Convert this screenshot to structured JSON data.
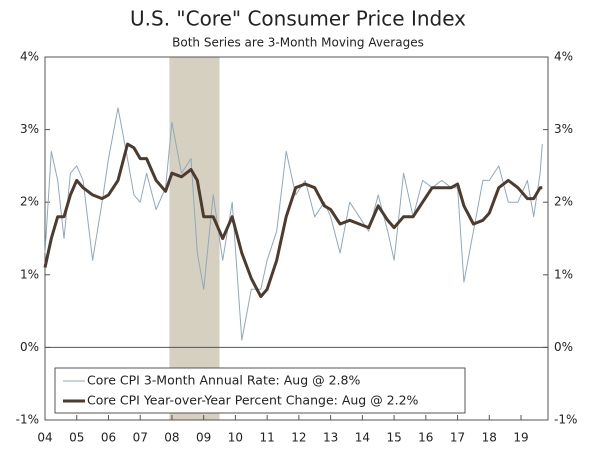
{
  "chart_data": {
    "type": "line",
    "title": "U.S. \"Core\" Consumer Price Index",
    "subtitle": "Both Series are 3-Month Moving Averages",
    "x": [
      2004.0,
      2004.2,
      2004.4,
      2004.6,
      2004.8,
      2005.0,
      2005.2,
      2005.5,
      2005.8,
      2006.0,
      2006.3,
      2006.6,
      2006.8,
      2007.0,
      2007.2,
      2007.5,
      2007.8,
      2008.0,
      2008.3,
      2008.6,
      2008.8,
      2009.0,
      2009.3,
      2009.6,
      2009.9,
      2010.2,
      2010.5,
      2010.8,
      2011.0,
      2011.3,
      2011.6,
      2011.9,
      2012.2,
      2012.5,
      2012.8,
      2013.0,
      2013.3,
      2013.6,
      2013.9,
      2014.2,
      2014.5,
      2014.8,
      2015.0,
      2015.3,
      2015.6,
      2015.9,
      2016.2,
      2016.5,
      2016.8,
      2017.0,
      2017.2,
      2017.5,
      2017.8,
      2018.0,
      2018.3,
      2018.6,
      2018.9,
      2019.2,
      2019.4,
      2019.6,
      2019.67
    ],
    "series": [
      {
        "name": "Core CPI 3-Month Annual Rate: Aug @ 2.8%",
        "color": "#8fa8c0",
        "width": 1,
        "values": [
          1.3,
          2.7,
          2.3,
          1.5,
          2.4,
          2.5,
          2.3,
          1.2,
          2.0,
          2.6,
          3.3,
          2.6,
          2.1,
          2.0,
          2.4,
          1.9,
          2.2,
          3.1,
          2.4,
          2.6,
          1.3,
          0.8,
          2.1,
          1.2,
          2.0,
          0.1,
          0.8,
          0.8,
          1.2,
          1.6,
          2.7,
          2.1,
          2.3,
          1.8,
          2.0,
          1.8,
          1.3,
          2.0,
          1.8,
          1.6,
          2.1,
          1.6,
          1.2,
          2.4,
          1.8,
          2.3,
          2.2,
          2.3,
          2.2,
          2.2,
          0.9,
          1.6,
          2.3,
          2.3,
          2.5,
          2.0,
          2.0,
          2.3,
          1.8,
          2.4,
          2.8
        ]
      },
      {
        "name": "Core CPI Year-over-Year Percent Change: Aug @ 2.2%",
        "color": "#4d3b2e",
        "width": 3,
        "values": [
          1.1,
          1.5,
          1.8,
          1.8,
          2.1,
          2.3,
          2.2,
          2.1,
          2.05,
          2.1,
          2.3,
          2.8,
          2.75,
          2.6,
          2.6,
          2.3,
          2.15,
          2.4,
          2.35,
          2.45,
          2.3,
          1.8,
          1.8,
          1.5,
          1.8,
          1.3,
          0.95,
          0.7,
          0.8,
          1.2,
          1.8,
          2.2,
          2.25,
          2.2,
          1.95,
          1.9,
          1.7,
          1.75,
          1.7,
          1.65,
          1.95,
          1.75,
          1.65,
          1.8,
          1.8,
          2.0,
          2.2,
          2.2,
          2.2,
          2.25,
          1.95,
          1.7,
          1.75,
          1.85,
          2.2,
          2.3,
          2.2,
          2.05,
          2.05,
          2.2,
          2.2
        ]
      }
    ],
    "xlim": [
      2004,
      2019.85
    ],
    "xticks": [
      {
        "value": 2004,
        "label": "04"
      },
      {
        "value": 2005,
        "label": "05"
      },
      {
        "value": 2006,
        "label": "06"
      },
      {
        "value": 2007,
        "label": "07"
      },
      {
        "value": 2008,
        "label": "08"
      },
      {
        "value": 2009,
        "label": "09"
      },
      {
        "value": 2010,
        "label": "10"
      },
      {
        "value": 2011,
        "label": "11"
      },
      {
        "value": 2012,
        "label": "12"
      },
      {
        "value": 2013,
        "label": "13"
      },
      {
        "value": 2014,
        "label": "14"
      },
      {
        "value": 2015,
        "label": "15"
      },
      {
        "value": 2016,
        "label": "16"
      },
      {
        "value": 2017,
        "label": "17"
      },
      {
        "value": 2018,
        "label": "18"
      },
      {
        "value": 2019,
        "label": "19"
      }
    ],
    "ylim": [
      -1,
      4
    ],
    "yticks": [
      {
        "value": -1,
        "label": "-1%"
      },
      {
        "value": 0,
        "label": "0%"
      },
      {
        "value": 1,
        "label": "1%"
      },
      {
        "value": 2,
        "label": "2%"
      },
      {
        "value": 3,
        "label": "3%"
      },
      {
        "value": 4,
        "label": "4%"
      }
    ],
    "y2lim": [
      -1,
      4
    ],
    "y2ticks": [
      {
        "value": -1,
        "label": "-1%"
      },
      {
        "value": 0,
        "label": "0%"
      },
      {
        "value": 1,
        "label": "1%"
      },
      {
        "value": 2,
        "label": "2%"
      },
      {
        "value": 3,
        "label": "3%"
      },
      {
        "value": 4,
        "label": "4%"
      }
    ],
    "shade": [
      2007.92,
      2009.5
    ],
    "shade_color": "#d6d0c0",
    "zeroline": true,
    "grid": false,
    "legend": "lower left"
  }
}
